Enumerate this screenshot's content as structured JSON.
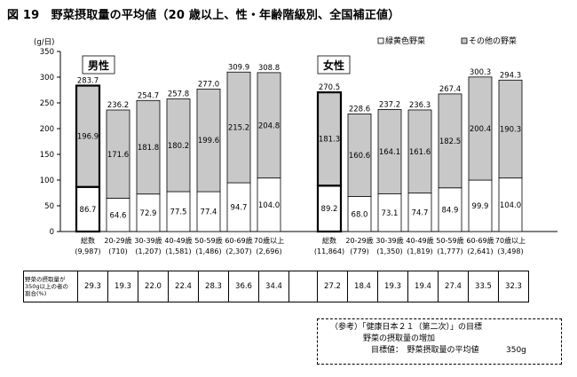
{
  "title": "図 19　野菜摂取量の平均値（20 歳以上、性・年齢階級別、全国補正値）",
  "chart_data": {
    "type": "bar",
    "stacked": true,
    "y_unit": "(g/日)",
    "ylim": [
      0,
      350
    ],
    "y_ticks": [
      0,
      50,
      100,
      150,
      200,
      250,
      300,
      350
    ],
    "legend": {
      "placement": "top-right",
      "entries": [
        "緑黄色野菜",
        "その他の野菜"
      ]
    },
    "series_colors": [
      "#ffffff",
      "#c8c8c8"
    ],
    "groups": [
      {
        "label": "男性",
        "bars": [
          {
            "cat": "総数",
            "n": "(9,987)",
            "green": "86.7",
            "other": "196.9",
            "total": "283.7",
            "ratio": "29.3",
            "highlight": true
          },
          {
            "cat": "20-29歳",
            "n": "(710)",
            "green": "64.6",
            "other": "171.6",
            "total": "236.2",
            "ratio": "19.3"
          },
          {
            "cat": "30-39歳",
            "n": "(1,207)",
            "green": "72.9",
            "other": "181.8",
            "total": "254.7",
            "ratio": "22.0"
          },
          {
            "cat": "40-49歳",
            "n": "(1,581)",
            "green": "77.5",
            "other": "180.2",
            "total": "257.8",
            "ratio": "22.4"
          },
          {
            "cat": "50-59歳",
            "n": "(1,486)",
            "green": "77.4",
            "other": "199.6",
            "total": "277.0",
            "ratio": "28.3"
          },
          {
            "cat": "60-69歳",
            "n": "(2,307)",
            "green": "94.7",
            "other": "215.2",
            "total": "309.9",
            "ratio": "36.6"
          },
          {
            "cat": "70歳以上",
            "n": "(2,696)",
            "green": "104.0",
            "other": "204.8",
            "total": "308.8",
            "ratio": "34.4"
          }
        ]
      },
      {
        "label": "女性",
        "bars": [
          {
            "cat": "総数",
            "n": "(11,864)",
            "green": "89.2",
            "other": "181.3",
            "total": "270.5",
            "ratio": "27.2",
            "highlight": true
          },
          {
            "cat": "20-29歳",
            "n": "(779)",
            "green": "68.0",
            "other": "160.6",
            "total": "228.6",
            "ratio": "18.4"
          },
          {
            "cat": "30-39歳",
            "n": "(1,350)",
            "green": "73.1",
            "other": "164.1",
            "total": "237.2",
            "ratio": "19.3"
          },
          {
            "cat": "40-49歳",
            "n": "(1,819)",
            "green": "74.7",
            "other": "161.6",
            "total": "236.3",
            "ratio": "19.4"
          },
          {
            "cat": "50-59歳",
            "n": "(1,777)",
            "green": "84.9",
            "other": "182.5",
            "total": "267.4",
            "ratio": "27.4"
          },
          {
            "cat": "60-69歳",
            "n": "(2,641)",
            "green": "99.9",
            "other": "200.4",
            "total": "300.3",
            "ratio": "33.5"
          },
          {
            "cat": "70歳以上",
            "n": "(3,498)",
            "green": "104.0",
            "other": "190.3",
            "total": "294.3",
            "ratio": "32.3"
          }
        ]
      }
    ]
  },
  "table": {
    "row_label_lines": [
      "野菜の摂取量が",
      "350g以上の者の",
      "割合(%)"
    ]
  },
  "reference": {
    "line1": "（参考）「健康日本２１（第二次）」の目標",
    "line2": "野菜の摂取量の増加",
    "line3_label": "目標値：　野菜摂取量の平均値",
    "line3_value": "350g"
  }
}
